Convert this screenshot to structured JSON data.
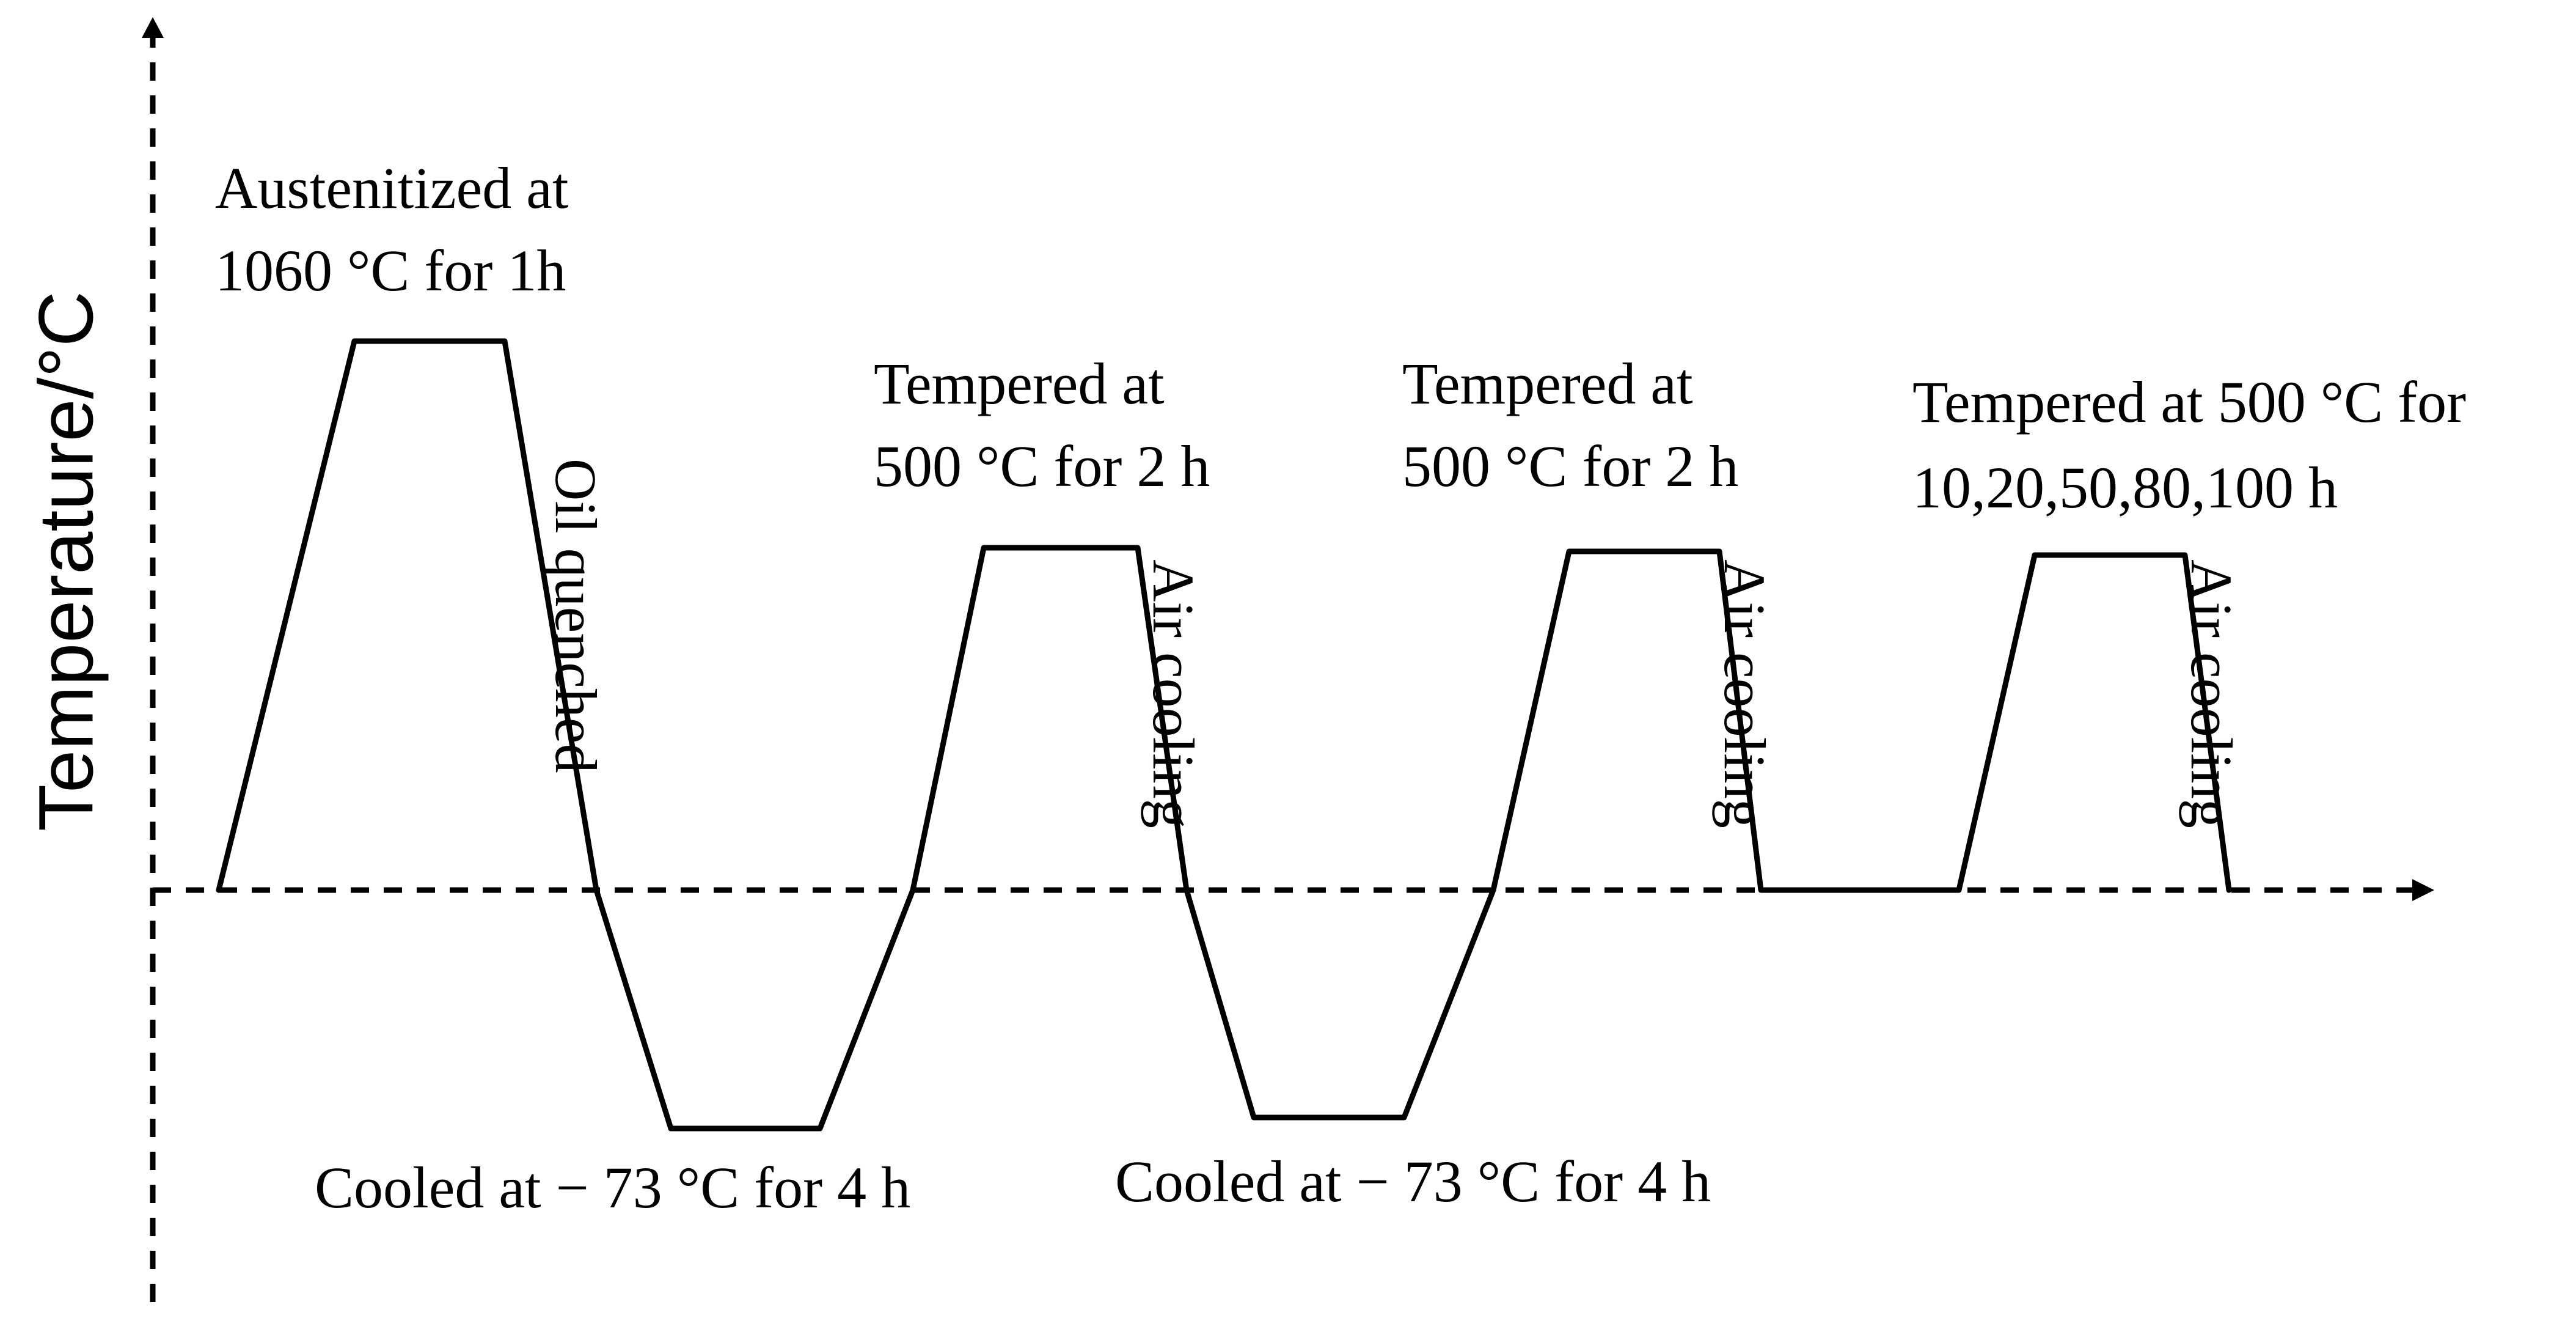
{
  "axis": {
    "y_label": "Temperature/°C"
  },
  "labels": {
    "austenitize_line1": "Austenitized at",
    "austenitize_line2": "1060 °C  for 1h",
    "oil_quench": "Oil quenched",
    "temper1_line1": "Tempered at",
    "temper1_line2": "500 °C for 2 h",
    "air1": "Air cooling",
    "temper2_line1": "Tempered at",
    "temper2_line2": "500 °C for 2 h",
    "air2": "Air cooling",
    "temper3_line1": "Tempered at 500 °C for",
    "temper3_line2": "10,20,50,80,100 h",
    "air3": "Air cooling",
    "cool1": "Cooled at  − 73 °C for 4 h",
    "cool2": "Cooled at  − 73 °C for 4 h"
  },
  "colors": {
    "line": "#000000",
    "background": "#ffffff"
  }
}
